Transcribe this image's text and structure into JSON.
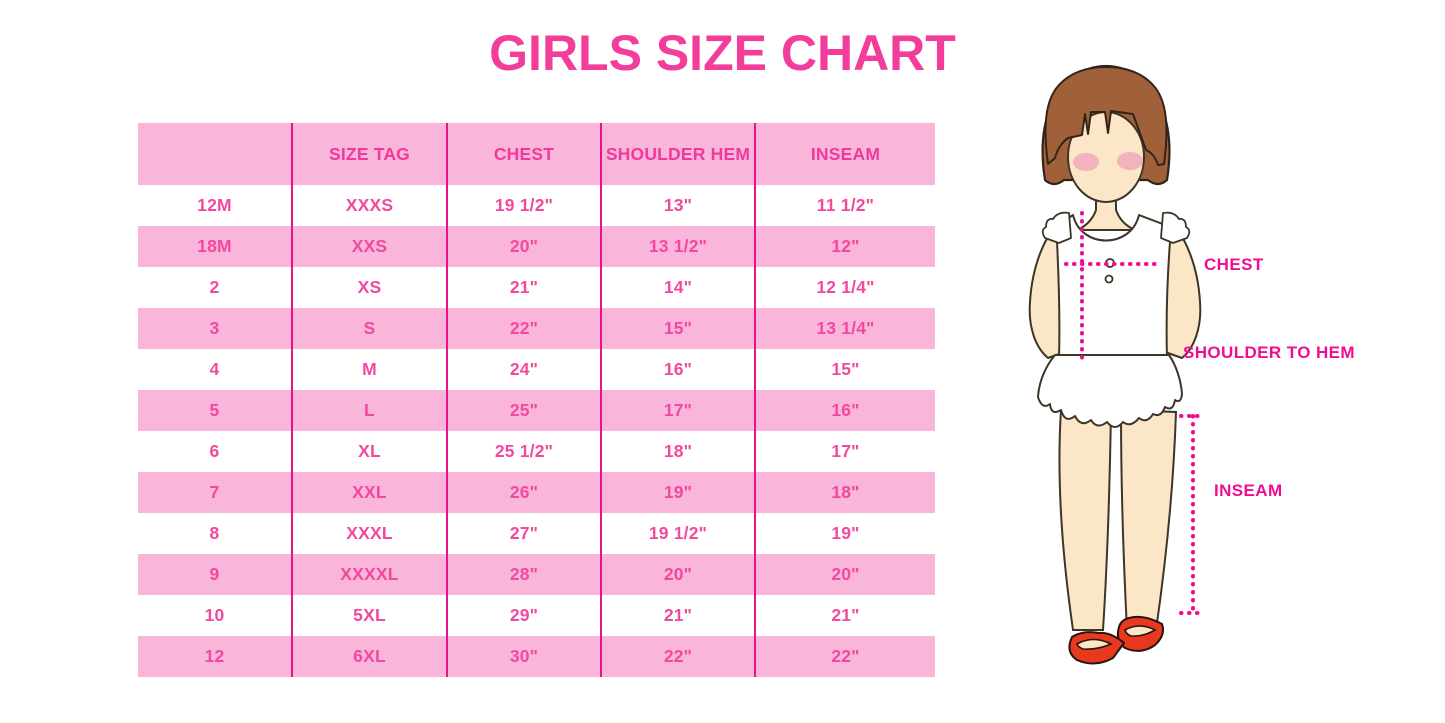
{
  "title": "GIRLS SIZE CHART",
  "table": {
    "headers": [
      "",
      "SIZE TAG",
      "CHEST",
      "SHOULDER HEM",
      "INSEAM"
    ],
    "rows": [
      [
        "12M",
        "XXXS",
        "19 1/2\"",
        "13\"",
        "11 1/2\""
      ],
      [
        "18M",
        "XXS",
        "20\"",
        "13 1/2\"",
        "12\""
      ],
      [
        "2",
        "XS",
        "21\"",
        "14\"",
        "12 1/4\""
      ],
      [
        "3",
        "S",
        "22\"",
        "15\"",
        "13 1/4\""
      ],
      [
        "4",
        "M",
        "24\"",
        "16\"",
        "15\""
      ],
      [
        "5",
        "L",
        "25\"",
        "17\"",
        "16\""
      ],
      [
        "6",
        "XL",
        "25 1/2\"",
        "18\"",
        "17\""
      ],
      [
        "7",
        "XXL",
        "26\"",
        "19\"",
        "18\""
      ],
      [
        "8",
        "XXXL",
        "27\"",
        "19 1/2\"",
        "19\""
      ],
      [
        "9",
        "XXXXL",
        "28\"",
        "20\"",
        "20\""
      ],
      [
        "10",
        "5XL",
        "29\"",
        "21\"",
        "21\""
      ],
      [
        "12",
        "6XL",
        "30\"",
        "22\"",
        "22\""
      ]
    ]
  },
  "figure": {
    "chest_label": "CHEST",
    "shoulder_hem_label": "SHOULDER TO HEM",
    "inseam_label": "INSEAM"
  },
  "colors": {
    "title_pink": "#F23E9A",
    "table_text_pink": "#F2489F",
    "row_pink": "#FAB5DA",
    "grid_line_magenta": "#E9118C",
    "label_magenta": "#F10D91",
    "hair_brown": "#A0613A",
    "skin": "#FBE7C7",
    "blush": "#F0A9BC",
    "dress_white": "#FFFFFF",
    "shoe_red": "#E8391E"
  }
}
